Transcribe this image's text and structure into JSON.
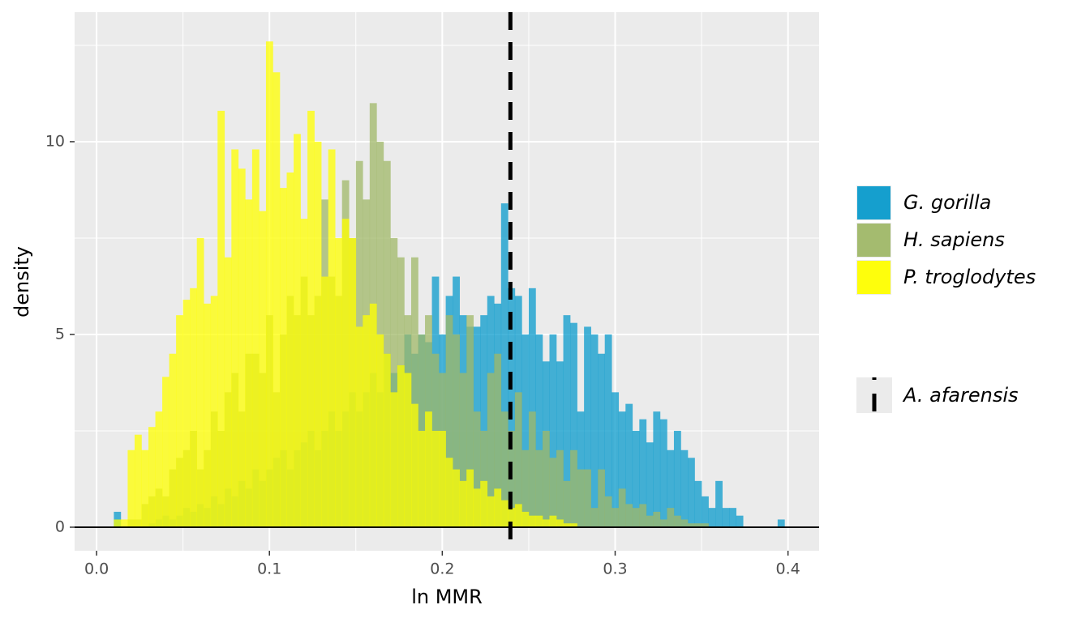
{
  "chart_data": {
    "type": "histogram",
    "xlabel": "ln MMR",
    "ylabel": "density",
    "bins": [
      0.01,
      0.014,
      0.018,
      0.022,
      0.026,
      0.03,
      0.034,
      0.038,
      0.042,
      0.046,
      0.05,
      0.054,
      0.058,
      0.062,
      0.066,
      0.07,
      0.074,
      0.078,
      0.082,
      0.086,
      0.09,
      0.094,
      0.098,
      0.102,
      0.106,
      0.11,
      0.114,
      0.118,
      0.122,
      0.126,
      0.13,
      0.134,
      0.138,
      0.142,
      0.146,
      0.15,
      0.154,
      0.158,
      0.162,
      0.166,
      0.17,
      0.174,
      0.178,
      0.182,
      0.186,
      0.19,
      0.194,
      0.198,
      0.202,
      0.206,
      0.21,
      0.214,
      0.218,
      0.222,
      0.226,
      0.23,
      0.234,
      0.238,
      0.242,
      0.246,
      0.25,
      0.254,
      0.258,
      0.262,
      0.266,
      0.27,
      0.274,
      0.278,
      0.282,
      0.286,
      0.29,
      0.294,
      0.298,
      0.302,
      0.306,
      0.31,
      0.314,
      0.318,
      0.322,
      0.326,
      0.33,
      0.334,
      0.338,
      0.342,
      0.346,
      0.35,
      0.354,
      0.358,
      0.362,
      0.366,
      0.37,
      0.374,
      0.378,
      0.382,
      0.386,
      0.39,
      0.394,
      0.398
    ],
    "series": [
      {
        "name": "G. gorilla",
        "color": "#0a9bcc",
        "values": [
          0.4,
          0,
          0,
          0,
          0,
          0.1,
          0.2,
          0.3,
          0.2,
          0.3,
          0.5,
          0.4,
          0.6,
          0.5,
          0.8,
          0.6,
          1.0,
          0.8,
          1.2,
          1.0,
          1.5,
          1.2,
          1.5,
          1.8,
          2.0,
          1.5,
          2.0,
          2.2,
          2.5,
          2.0,
          2.5,
          3.0,
          2.5,
          3.0,
          3.5,
          3.0,
          3.5,
          4.0,
          3.5,
          4.5,
          4.0,
          4.2,
          5.0,
          4.5,
          5.0,
          4.8,
          6.5,
          5.0,
          6.0,
          6.5,
          5.5,
          5.2,
          5.2,
          5.5,
          6.0,
          5.8,
          8.4,
          6.2,
          6.0,
          5.0,
          6.2,
          5.0,
          4.3,
          5.0,
          4.3,
          5.5,
          5.3,
          3.0,
          5.2,
          5.0,
          4.5,
          5.0,
          3.5,
          3.0,
          3.2,
          2.5,
          2.8,
          2.2,
          3.0,
          2.8,
          2.0,
          2.5,
          2.0,
          1.8,
          1.2,
          0.8,
          0.5,
          1.2,
          0.5,
          0.5,
          0.3,
          0,
          0,
          0,
          0,
          0,
          0.2
        ]
      },
      {
        "name": "H. sapiens",
        "color": "#a0b868",
        "values": [
          0,
          0,
          0.2,
          0.2,
          0.6,
          0.8,
          1.0,
          0.8,
          1.5,
          1.8,
          2.0,
          2.5,
          1.5,
          2.0,
          3.0,
          2.5,
          3.5,
          4.0,
          3.0,
          4.5,
          4.5,
          4.0,
          5.5,
          3.5,
          5.0,
          6.0,
          5.5,
          6.5,
          5.5,
          6.0,
          8.5,
          6.5,
          6.0,
          9.0,
          7.5,
          9.5,
          8.5,
          11.0,
          10.0,
          9.5,
          7.5,
          7.0,
          5.5,
          7.0,
          5.0,
          5.5,
          4.5,
          4.0,
          5.5,
          5.0,
          4.0,
          5.5,
          3.0,
          2.5,
          4.0,
          4.5,
          3.0,
          2.5,
          3.5,
          2.0,
          3.0,
          2.0,
          2.5,
          1.8,
          2.0,
          1.2,
          2.0,
          1.5,
          1.5,
          0.5,
          1.5,
          0.8,
          0.5,
          1.0,
          0.6,
          0.5,
          0.6,
          0.3,
          0.4,
          0.2,
          0.5,
          0.3,
          0.2,
          0.1,
          0.1,
          0.1,
          0,
          0,
          0,
          0,
          0,
          0,
          0,
          0,
          0,
          0,
          0
        ]
      },
      {
        "name": "P. troglodytes",
        "color": "#ffff00",
        "values": [
          0.2,
          0.2,
          2.0,
          2.4,
          2.0,
          2.6,
          3.0,
          3.9,
          4.5,
          5.5,
          5.9,
          6.2,
          7.5,
          5.8,
          6.0,
          10.8,
          7.0,
          9.8,
          9.3,
          8.5,
          9.8,
          8.2,
          12.6,
          11.8,
          8.8,
          9.2,
          10.2,
          8.0,
          10.8,
          10.0,
          6.5,
          9.8,
          7.5,
          8.0,
          7.5,
          5.2,
          5.5,
          5.8,
          5.0,
          4.5,
          3.5,
          4.2,
          4.0,
          3.2,
          2.5,
          3.0,
          2.5,
          2.5,
          1.8,
          1.5,
          1.2,
          1.5,
          1.0,
          1.2,
          0.8,
          1.0,
          0.7,
          0.5,
          0.6,
          0.4,
          0.3,
          0.3,
          0.2,
          0.3,
          0.2,
          0.1,
          0.1,
          0,
          0,
          0,
          0,
          0,
          0,
          0,
          0,
          0,
          0,
          0,
          0,
          0,
          0,
          0,
          0,
          0,
          0,
          0,
          0,
          0,
          0,
          0,
          0,
          0,
          0,
          0,
          0,
          0,
          0
        ]
      }
    ],
    "vline": {
      "name": "A. afarensis",
      "x": 0.2394,
      "color": "#000000"
    },
    "xlim": [
      -0.0127,
      0.418
    ],
    "xticks": [
      {
        "value": 0,
        "label": "0.0"
      },
      0.1,
      0.2,
      0.3,
      0.4
    ],
    "ylim": [
      -0.61,
      13.36
    ],
    "yticks": [
      0,
      5,
      10
    ],
    "grid": true
  }
}
